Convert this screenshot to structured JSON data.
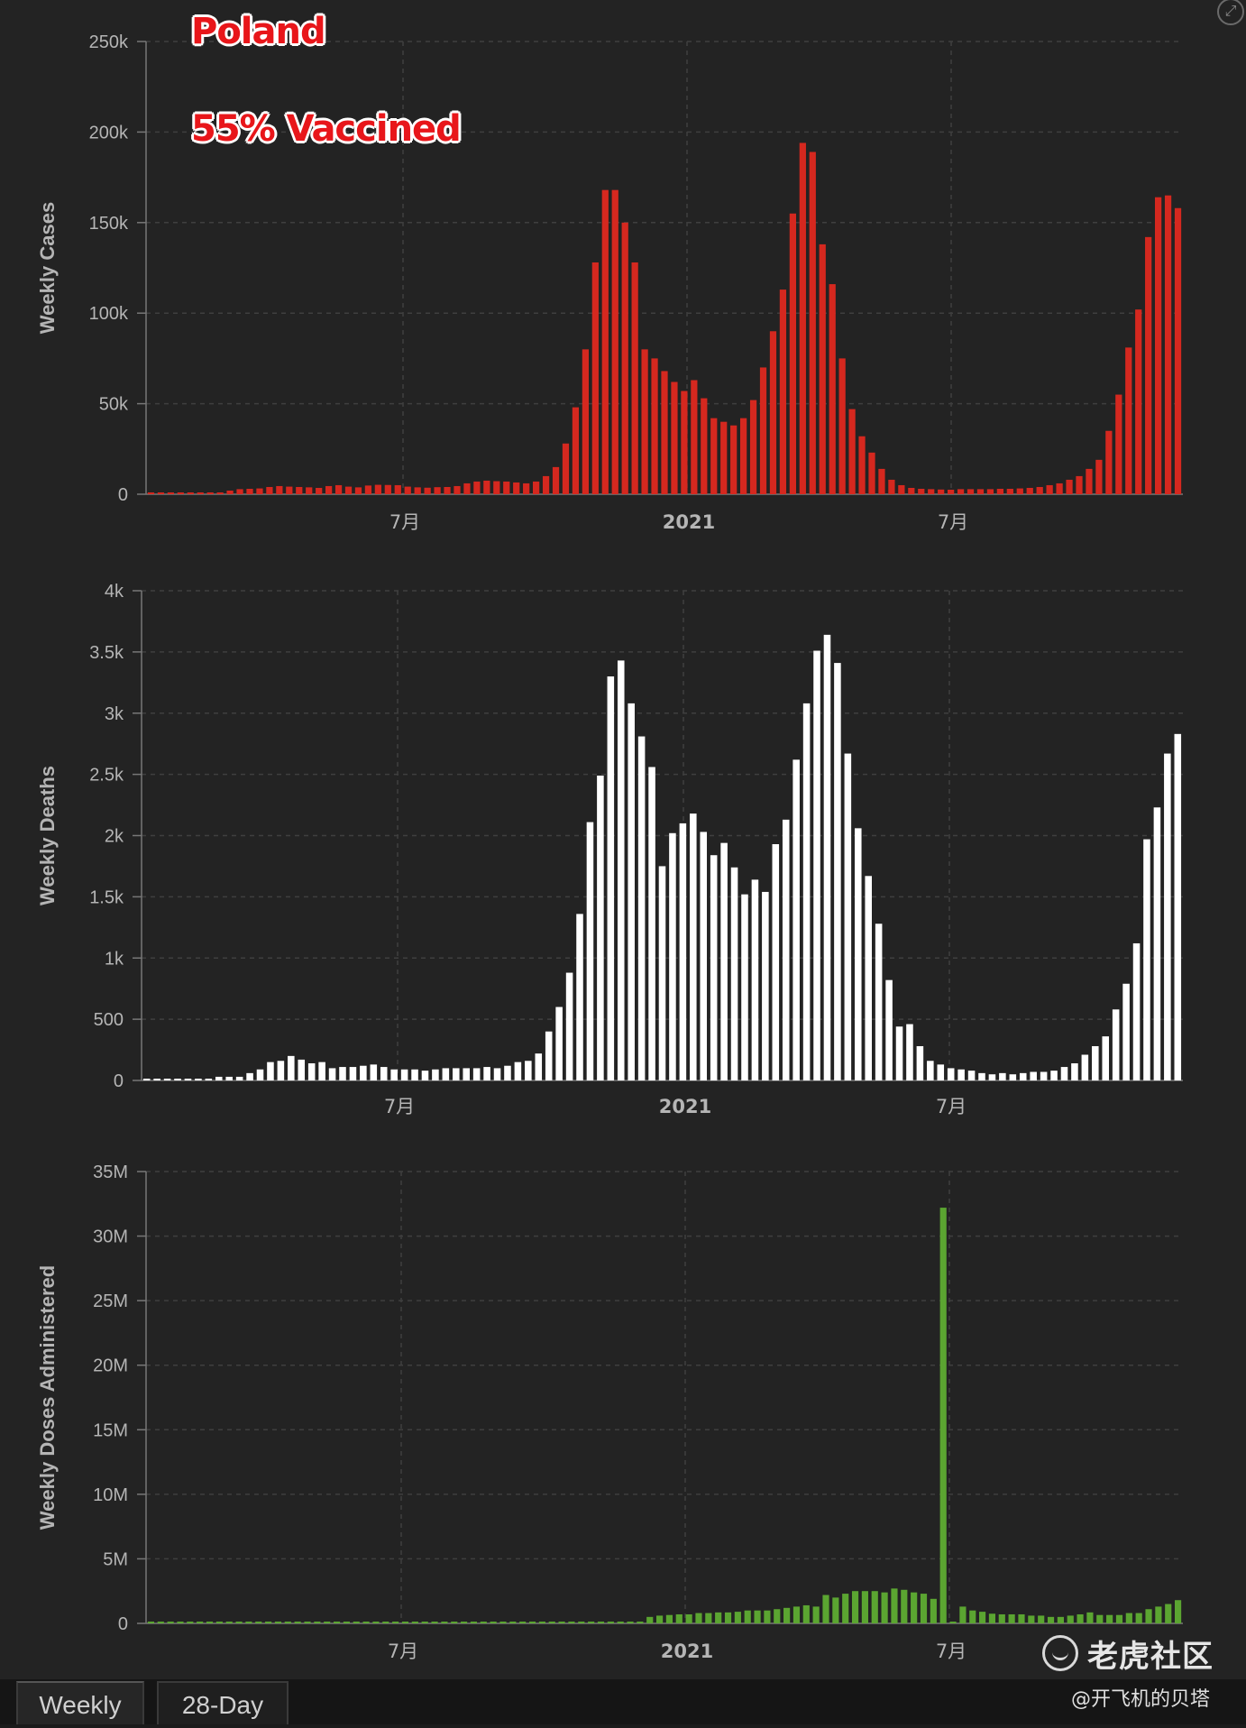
{
  "overlay": {
    "title_line_1": "Poland",
    "title_line_2": "55% Vaccined"
  },
  "tabs": [
    {
      "label": "Weekly",
      "selected": true
    },
    {
      "label": "28-Day",
      "selected": false
    }
  ],
  "watermark": {
    "text": "老虎社区",
    "credit": "@开飞机的贝塔"
  },
  "colors": {
    "background": "#232323",
    "cases_bar": "#d5281f",
    "deaths_bar": "#ffffff",
    "doses_bar": "#5ba531",
    "grid": "#3f3f3f",
    "axis_text": "#b5b5b5"
  },
  "icons": {
    "expand": "expand-icon"
  },
  "chart_data": [
    {
      "type": "bar",
      "ylabel": "Weekly Cases",
      "ylim": [
        0,
        250000
      ],
      "yticks": [
        0,
        50000,
        100000,
        150000,
        200000,
        250000
      ],
      "ytick_labels": [
        "0",
        "50k",
        "100k",
        "150k",
        "200k",
        "250k"
      ],
      "xtick_labels": [
        "7月",
        "2021",
        "7月"
      ],
      "grid": true,
      "series": [
        {
          "color": "#d5281f",
          "values": [
            0,
            0,
            0,
            0,
            0,
            0,
            0,
            500,
            2000,
            2800,
            3000,
            3200,
            4000,
            4500,
            4200,
            4000,
            3800,
            3500,
            4500,
            5000,
            4200,
            3800,
            4800,
            5200,
            5100,
            5000,
            4200,
            3800,
            3600,
            3900,
            4000,
            4500,
            6000,
            7000,
            7500,
            7200,
            7000,
            6500,
            6000,
            7000,
            10000,
            15000,
            28000,
            48000,
            80000,
            128000,
            168000,
            168000,
            150000,
            128000,
            80000,
            75000,
            68000,
            62000,
            57000,
            63000,
            53000,
            42000,
            40000,
            38000,
            42000,
            52000,
            70000,
            90000,
            113000,
            155000,
            194000,
            189000,
            138000,
            116000,
            75000,
            47000,
            32000,
            23000,
            14000,
            8000,
            5000,
            3500,
            3000,
            2800,
            2600,
            2500,
            2800,
            2800,
            2800,
            2800,
            3000,
            3000,
            3200,
            3500,
            4000,
            5000,
            6000,
            8000,
            10000,
            14000,
            19000,
            35000,
            55000,
            81000,
            102000,
            142000,
            164000,
            165000,
            158000
          ]
        }
      ]
    },
    {
      "type": "bar",
      "ylabel": "Weekly Deaths",
      "ylim": [
        0,
        4000
      ],
      "yticks": [
        0,
        500,
        1000,
        1500,
        2000,
        2500,
        3000,
        3500,
        4000
      ],
      "ytick_labels": [
        "0",
        "500",
        "1k",
        "1.5k",
        "2k",
        "2.5k",
        "3k",
        "3.5k",
        "4k"
      ],
      "xtick_labels": [
        "7月",
        "2021",
        "7月"
      ],
      "grid": true,
      "series": [
        {
          "color": "#ffffff",
          "values": [
            0,
            0,
            0,
            0,
            0,
            0,
            0,
            30,
            30,
            30,
            60,
            90,
            150,
            160,
            200,
            170,
            140,
            150,
            100,
            110,
            110,
            120,
            130,
            110,
            90,
            90,
            90,
            80,
            90,
            100,
            100,
            100,
            100,
            110,
            100,
            120,
            150,
            160,
            220,
            400,
            600,
            880,
            1360,
            2110,
            2490,
            3300,
            3430,
            3080,
            2810,
            2560,
            1750,
            2020,
            2100,
            2180,
            2030,
            1840,
            1940,
            1740,
            1520,
            1640,
            1540,
            1930,
            2130,
            2620,
            3080,
            3510,
            3640,
            3410,
            2670,
            2060,
            1670,
            1280,
            820,
            440,
            460,
            280,
            160,
            130,
            100,
            90,
            80,
            60,
            50,
            60,
            50,
            60,
            70,
            70,
            80,
            110,
            140,
            210,
            280,
            360,
            580,
            790,
            1120,
            1970,
            2230,
            2670,
            2830
          ]
        }
      ]
    },
    {
      "type": "bar",
      "ylabel": "Weekly Doses Administered",
      "ylim": [
        0,
        35000000
      ],
      "yticks": [
        0,
        5000000,
        10000000,
        15000000,
        20000000,
        25000000,
        30000000,
        35000000
      ],
      "ytick_labels": [
        "0",
        "5M",
        "10M",
        "15M",
        "20M",
        "25M",
        "30M",
        "35M"
      ],
      "xtick_labels": [
        "7月",
        "2021",
        "7月"
      ],
      "grid": true,
      "series": [
        {
          "color": "#5ba531",
          "values": [
            0,
            0,
            0,
            0,
            0,
            0,
            0,
            0,
            0,
            0,
            0,
            0,
            0,
            0,
            0,
            0,
            0,
            0,
            0,
            0,
            0,
            0,
            0,
            0,
            0,
            0,
            0,
            0,
            0,
            0,
            0,
            0,
            0,
            0,
            0,
            0,
            0,
            0,
            0,
            0,
            0,
            0,
            0,
            0,
            0,
            0,
            0,
            0,
            0,
            0,
            0,
            500000,
            600000,
            650000,
            700000,
            700000,
            800000,
            800000,
            850000,
            850000,
            900000,
            1000000,
            1000000,
            1000000,
            1100000,
            1200000,
            1300000,
            1400000,
            1300000,
            2200000,
            2000000,
            2300000,
            2500000,
            2500000,
            2500000,
            2400000,
            2700000,
            2600000,
            2400000,
            2300000,
            1900000,
            32200000,
            0,
            1300000,
            1000000,
            900000,
            750000,
            700000,
            700000,
            700000,
            600000,
            600000,
            500000,
            500000,
            600000,
            700000,
            850000,
            650000,
            650000,
            650000,
            800000,
            800000,
            1100000,
            1300000,
            1500000,
            1800000
          ]
        }
      ]
    }
  ]
}
